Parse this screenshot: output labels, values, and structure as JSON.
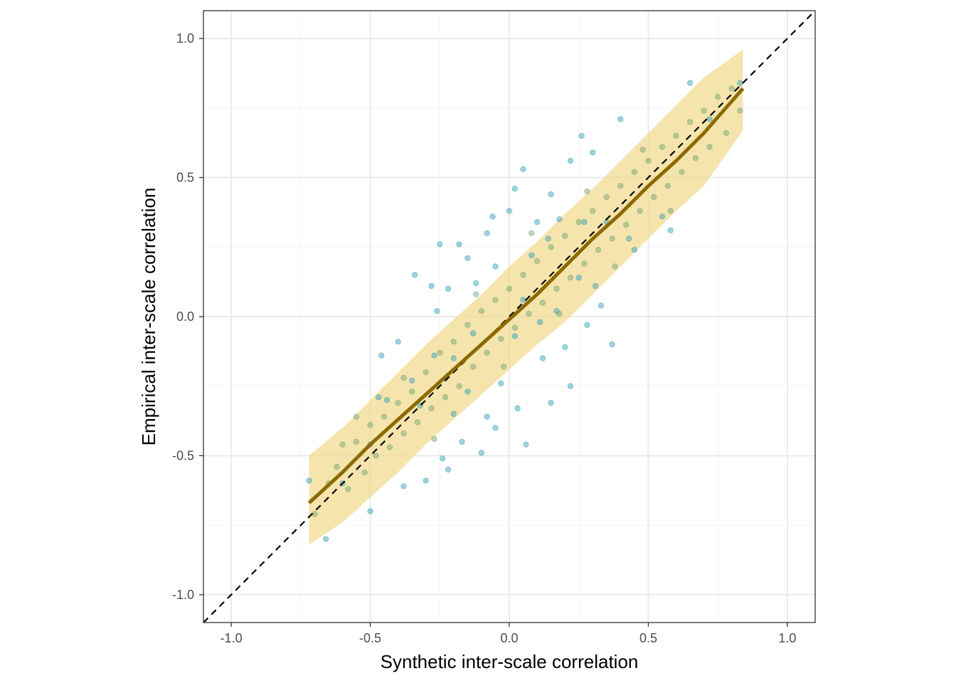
{
  "chart_data": {
    "type": "scatter",
    "title": "",
    "xlabel": "Synthetic inter-scale correlation",
    "ylabel": "Empirical inter-scale correlation",
    "xlim": [
      -1.1,
      1.1
    ],
    "ylim": [
      -1.1,
      1.1
    ],
    "x_ticks": [
      -1.0,
      -0.5,
      0.0,
      0.5,
      1.0
    ],
    "y_ticks": [
      -1.0,
      -0.5,
      0.0,
      0.5,
      1.0
    ],
    "x_tick_labels": [
      "-1.0",
      "-0.5",
      "0.0",
      "0.5",
      "1.0"
    ],
    "y_tick_labels": [
      "-1.0",
      "-0.5",
      "0.0",
      "0.5",
      "1.0"
    ],
    "grid": true,
    "legend": "none",
    "colors": {
      "background": "#ffffff",
      "grid_major": "#ebebeb",
      "grid_minor": "#f3f3f3",
      "panel_border": "#333333",
      "points_blue": "#2a9bb5",
      "points_green": "#6aa272",
      "band": "#f2d98a",
      "trend_line": "#8c6a00",
      "reference_line": "#000000"
    },
    "reference_line": {
      "style": "dashed",
      "slope": 1,
      "intercept": 0
    },
    "trend_line": {
      "x": [
        -0.72,
        -0.6,
        -0.5,
        -0.4,
        -0.3,
        -0.2,
        -0.1,
        0.0,
        0.1,
        0.2,
        0.3,
        0.4,
        0.5,
        0.6,
        0.7,
        0.84
      ],
      "y": [
        -0.67,
        -0.56,
        -0.46,
        -0.37,
        -0.28,
        -0.19,
        -0.1,
        -0.01,
        0.08,
        0.18,
        0.28,
        0.37,
        0.47,
        0.56,
        0.66,
        0.82
      ]
    },
    "band": {
      "x": [
        -0.72,
        -0.6,
        -0.5,
        -0.4,
        -0.3,
        -0.2,
        -0.1,
        0.0,
        0.1,
        0.2,
        0.3,
        0.4,
        0.5,
        0.6,
        0.7,
        0.84
      ],
      "lower": [
        -0.82,
        -0.74,
        -0.65,
        -0.56,
        -0.46,
        -0.37,
        -0.28,
        -0.19,
        -0.1,
        -0.02,
        0.08,
        0.18,
        0.28,
        0.38,
        0.47,
        0.67
      ],
      "upper": [
        -0.5,
        -0.4,
        -0.3,
        -0.2,
        -0.1,
        -0.01,
        0.08,
        0.18,
        0.27,
        0.37,
        0.46,
        0.56,
        0.66,
        0.76,
        0.86,
        0.96
      ]
    },
    "series": [
      {
        "color": "blue",
        "points": [
          [
            -0.72,
            -0.59
          ],
          [
            -0.66,
            -0.8
          ],
          [
            -0.6,
            -0.6
          ],
          [
            -0.5,
            -0.7
          ],
          [
            -0.5,
            -0.46
          ],
          [
            -0.47,
            -0.29
          ],
          [
            -0.46,
            -0.14
          ],
          [
            -0.44,
            -0.3
          ],
          [
            -0.4,
            -0.09
          ],
          [
            -0.38,
            -0.61
          ],
          [
            -0.35,
            -0.23
          ],
          [
            -0.34,
            0.15
          ],
          [
            -0.3,
            -0.59
          ],
          [
            -0.28,
            0.11
          ],
          [
            -0.27,
            -0.14
          ],
          [
            -0.25,
            0.26
          ],
          [
            -0.24,
            -0.51
          ],
          [
            -0.22,
            0.1
          ],
          [
            -0.22,
            -0.55
          ],
          [
            -0.2,
            -0.35
          ],
          [
            -0.18,
            0.26
          ],
          [
            -0.17,
            -0.45
          ],
          [
            -0.15,
            0.21
          ],
          [
            -0.12,
            0.12
          ],
          [
            -0.1,
            -0.49
          ],
          [
            -0.08,
            0.3
          ],
          [
            -0.06,
            0.36
          ],
          [
            -0.05,
            -0.4
          ],
          [
            -0.03,
            -0.24
          ],
          [
            0.0,
            0.38
          ],
          [
            0.02,
            0.46
          ],
          [
            0.03,
            -0.33
          ],
          [
            0.05,
            0.53
          ],
          [
            0.06,
            -0.46
          ],
          [
            0.1,
            0.34
          ],
          [
            0.12,
            -0.15
          ],
          [
            0.15,
            0.44
          ],
          [
            0.15,
            -0.31
          ],
          [
            0.18,
            0.35
          ],
          [
            0.2,
            -0.11
          ],
          [
            0.22,
            0.56
          ],
          [
            0.22,
            -0.25
          ],
          [
            0.26,
            0.65
          ],
          [
            0.28,
            -0.03
          ],
          [
            0.3,
            0.59
          ],
          [
            0.33,
            0.04
          ],
          [
            0.35,
            0.34
          ],
          [
            0.37,
            -0.1
          ],
          [
            0.4,
            0.71
          ],
          [
            0.43,
            0.28
          ],
          [
            0.45,
            0.24
          ],
          [
            0.55,
            0.36
          ],
          [
            0.58,
            0.31
          ],
          [
            0.65,
            0.84
          ],
          [
            0.72,
            0.71
          ],
          [
            0.83,
            0.84
          ],
          [
            -0.05,
            0.18
          ],
          [
            0.08,
            0.22
          ],
          [
            -0.13,
            -0.06
          ],
          [
            0.25,
            0.14
          ],
          [
            0.02,
            -0.07
          ],
          [
            -0.32,
            -0.32
          ],
          [
            0.17,
            0.02
          ],
          [
            -0.2,
            -0.15
          ],
          [
            0.11,
            -0.02
          ],
          [
            0.27,
            0.34
          ],
          [
            -0.08,
            -0.36
          ],
          [
            0.31,
            0.11
          ],
          [
            -0.26,
            0.02
          ],
          [
            0.05,
            0.06
          ],
          [
            0.14,
            0.28
          ],
          [
            -0.15,
            -0.27
          ]
        ]
      },
      {
        "color": "green",
        "points": [
          [
            -0.7,
            -0.71
          ],
          [
            -0.65,
            -0.6
          ],
          [
            -0.62,
            -0.54
          ],
          [
            -0.58,
            -0.62
          ],
          [
            -0.55,
            -0.45
          ],
          [
            -0.52,
            -0.56
          ],
          [
            -0.5,
            -0.39
          ],
          [
            -0.48,
            -0.5
          ],
          [
            -0.45,
            -0.36
          ],
          [
            -0.43,
            -0.47
          ],
          [
            -0.4,
            -0.31
          ],
          [
            -0.38,
            -0.42
          ],
          [
            -0.35,
            -0.27
          ],
          [
            -0.33,
            -0.38
          ],
          [
            -0.3,
            -0.2
          ],
          [
            -0.28,
            -0.33
          ],
          [
            -0.25,
            -0.13
          ],
          [
            -0.23,
            -0.29
          ],
          [
            -0.2,
            -0.09
          ],
          [
            -0.18,
            -0.25
          ],
          [
            -0.15,
            -0.03
          ],
          [
            -0.13,
            -0.18
          ],
          [
            -0.1,
            0.02
          ],
          [
            -0.08,
            -0.13
          ],
          [
            -0.05,
            0.06
          ],
          [
            -0.03,
            -0.08
          ],
          [
            0.0,
            0.1
          ],
          [
            0.02,
            -0.04
          ],
          [
            0.05,
            0.15
          ],
          [
            0.07,
            0.01
          ],
          [
            0.1,
            0.2
          ],
          [
            0.12,
            0.05
          ],
          [
            0.15,
            0.25
          ],
          [
            0.17,
            0.1
          ],
          [
            0.2,
            0.29
          ],
          [
            0.22,
            0.14
          ],
          [
            0.25,
            0.34
          ],
          [
            0.27,
            0.19
          ],
          [
            0.3,
            0.38
          ],
          [
            0.32,
            0.24
          ],
          [
            0.35,
            0.43
          ],
          [
            0.37,
            0.28
          ],
          [
            0.4,
            0.47
          ],
          [
            0.42,
            0.33
          ],
          [
            0.45,
            0.52
          ],
          [
            0.47,
            0.38
          ],
          [
            0.5,
            0.56
          ],
          [
            0.52,
            0.43
          ],
          [
            0.55,
            0.61
          ],
          [
            0.57,
            0.47
          ],
          [
            0.6,
            0.65
          ],
          [
            0.62,
            0.52
          ],
          [
            0.65,
            0.7
          ],
          [
            0.67,
            0.57
          ],
          [
            0.7,
            0.74
          ],
          [
            0.72,
            0.61
          ],
          [
            0.75,
            0.79
          ],
          [
            0.78,
            0.66
          ],
          [
            0.8,
            0.82
          ],
          [
            0.83,
            0.74
          ],
          [
            -0.38,
            -0.22
          ],
          [
            -0.27,
            -0.44
          ],
          [
            -0.12,
            0.08
          ],
          [
            -0.02,
            -0.18
          ],
          [
            0.08,
            0.3
          ],
          [
            0.18,
            0.01
          ],
          [
            0.28,
            0.45
          ],
          [
            0.38,
            0.18
          ],
          [
            0.48,
            0.6
          ],
          [
            0.58,
            0.38
          ],
          [
            -0.55,
            -0.36
          ],
          [
            -0.6,
            -0.46
          ]
        ]
      }
    ]
  }
}
